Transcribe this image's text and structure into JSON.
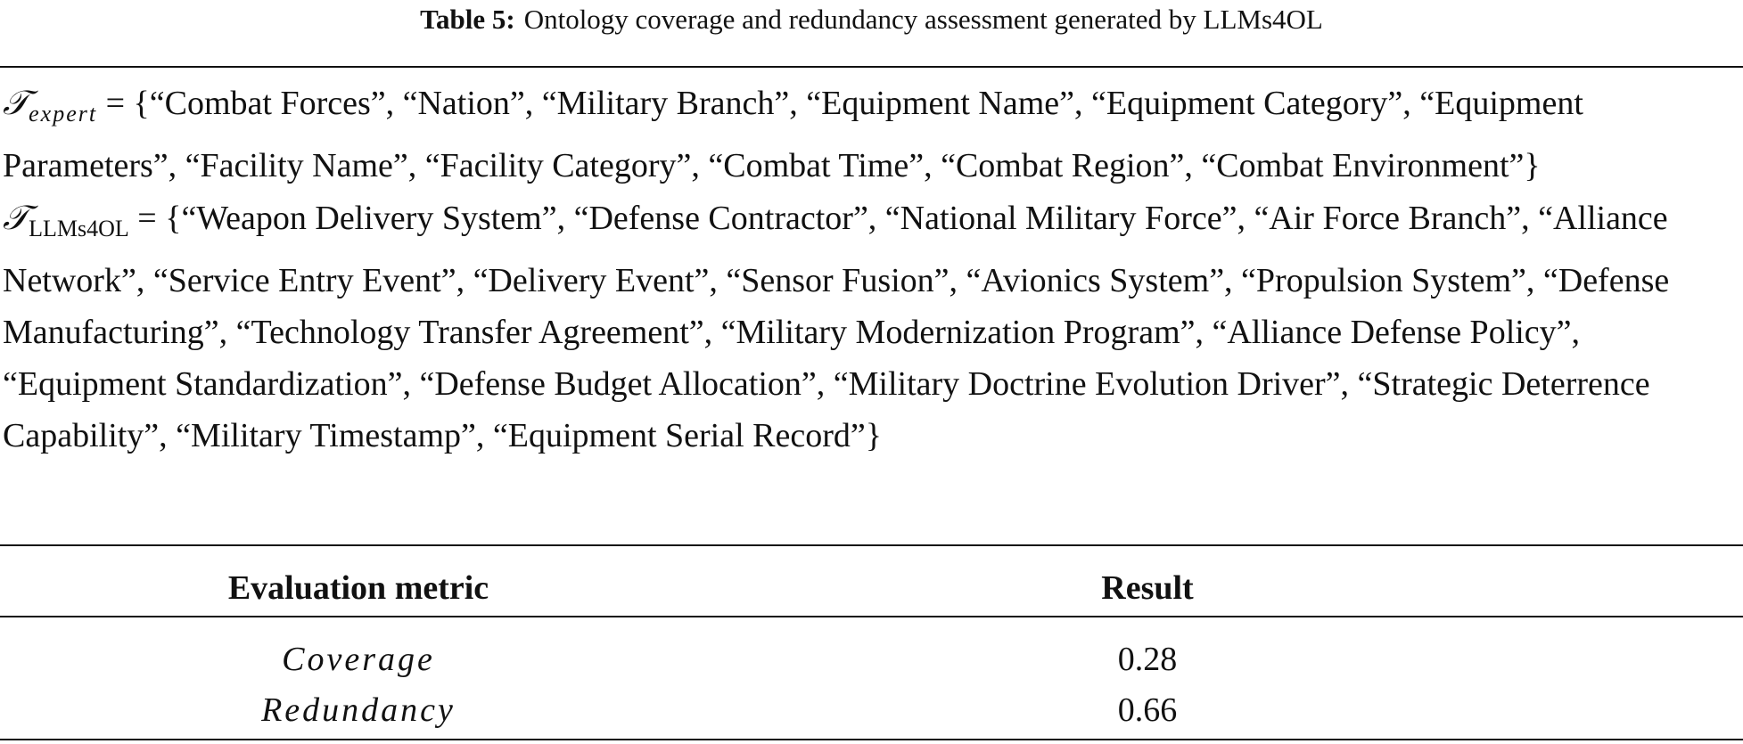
{
  "caption": {
    "label": "Table 5:",
    "text": "Ontology coverage and redundancy assessment generated by LLMs4OL"
  },
  "sets": [
    {
      "symbol": "𝒯",
      "subscript": "expert",
      "content": "= {“Combat Forces”, “Nation”, “Military Branch”, “Equipment Name”, “Equipment Category”, “Equipment Parameters”, “Facility Name”, “Facility Category”, “Combat Time”, “Combat Region”, “Combat Environment”}"
    },
    {
      "symbol": "𝒯",
      "subscript": "LLMs4OL",
      "content": "= {“Weapon Delivery System”, “Defense Contractor”, “National Military Force”, “Air Force Branch”, “Alliance Network”, “Service Entry Event”, “Delivery Event”, “Sensor Fusion”, “Avionics System”, “Propulsion System”, “Defense Manufacturing”, “Technology Transfer Agreement”, “Military Modernization Program”, “Alliance Defense Policy”, “Equipment Standardization”, “Defense Budget Allocation”, “Military Doctrine Evolution Driver”, “Strategic Deterrence Capability”, “Military Timestamp”, “Equipment Serial Record”}"
    }
  ],
  "table": {
    "header": [
      "Evaluation metric",
      "Result"
    ],
    "rows": [
      [
        "Coverage",
        "0.28"
      ],
      [
        "Redundancy",
        "0.66"
      ]
    ]
  }
}
